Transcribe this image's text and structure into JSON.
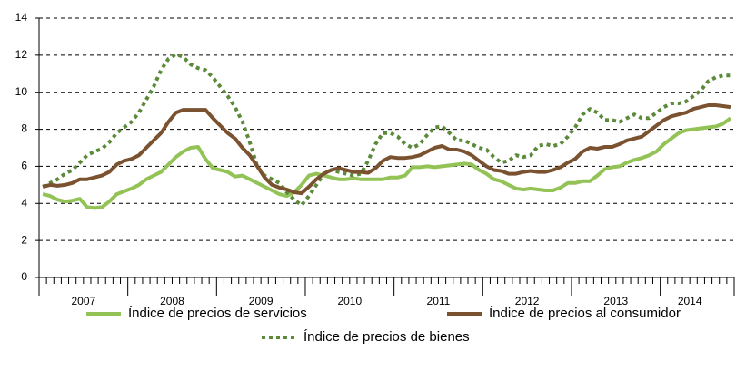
{
  "chart_data": {
    "type": "line",
    "categories": [
      null,
      null,
      null,
      null,
      null,
      null,
      "2007",
      null,
      null,
      null,
      null,
      null,
      null,
      null,
      null,
      null,
      null,
      null,
      "2008",
      null,
      null,
      null,
      null,
      null,
      null,
      null,
      null,
      null,
      null,
      null,
      "2009",
      null,
      null,
      null,
      null,
      null,
      null,
      null,
      null,
      null,
      null,
      null,
      "2010",
      null,
      null,
      null,
      null,
      null,
      null,
      null,
      null,
      null,
      null,
      null,
      "2011",
      null,
      null,
      null,
      null,
      null,
      null,
      null,
      null,
      null,
      null,
      null,
      "2012",
      null,
      null,
      null,
      null,
      null,
      null,
      null,
      null,
      null,
      null,
      null,
      "2013",
      null,
      null,
      null,
      null,
      null,
      null,
      null,
      null,
      null,
      "2014",
      null,
      null,
      null,
      null,
      null
    ],
    "ylim": [
      0,
      14
    ],
    "yticks": [
      0,
      2,
      4,
      6,
      8,
      10,
      12,
      14
    ],
    "grid": true,
    "series": [
      {
        "name": "Índice de precios de servicios",
        "color": "#93c356",
        "dash": false,
        "values": [
          4.5,
          4.4,
          4.2,
          4.1,
          4.15,
          4.25,
          3.8,
          3.75,
          3.8,
          4.1,
          4.5,
          4.65,
          4.8,
          5.0,
          5.3,
          5.5,
          5.7,
          6.1,
          6.5,
          6.8,
          7.0,
          7.05,
          6.4,
          5.9,
          5.8,
          5.7,
          5.45,
          5.5,
          5.3,
          5.1,
          4.9,
          4.7,
          4.5,
          4.4,
          4.6,
          5.0,
          5.5,
          5.6,
          5.5,
          5.4,
          5.3,
          5.3,
          5.35,
          5.3,
          5.3,
          5.3,
          5.3,
          5.4,
          5.4,
          5.5,
          5.95,
          5.95,
          6.0,
          5.95,
          6.0,
          6.05,
          6.1,
          6.15,
          6.1,
          5.8,
          5.6,
          5.3,
          5.2,
          5.0,
          4.8,
          4.75,
          4.8,
          4.75,
          4.7,
          4.7,
          4.85,
          5.1,
          5.1,
          5.2,
          5.2,
          5.5,
          5.85,
          5.95,
          6.0,
          6.2,
          6.35,
          6.45,
          6.6,
          6.8,
          7.2,
          7.5,
          7.8,
          7.95,
          8.0,
          8.05,
          8.1,
          8.15,
          8.3,
          8.6
        ]
      },
      {
        "name": "Índice de precios al consumidor",
        "color": "#7a5230",
        "dash": false,
        "values": [
          4.9,
          5.0,
          4.95,
          5.0,
          5.1,
          5.3,
          5.3,
          5.4,
          5.5,
          5.7,
          6.1,
          6.3,
          6.4,
          6.6,
          7.0,
          7.4,
          7.8,
          8.4,
          8.9,
          9.05,
          9.05,
          9.05,
          9.05,
          8.6,
          8.2,
          7.8,
          7.5,
          7.0,
          6.6,
          6.0,
          5.4,
          5.0,
          4.85,
          4.75,
          4.6,
          4.55,
          4.9,
          5.3,
          5.6,
          5.8,
          5.9,
          5.8,
          5.7,
          5.7,
          5.65,
          5.9,
          6.3,
          6.5,
          6.45,
          6.45,
          6.5,
          6.6,
          6.8,
          7.0,
          7.1,
          6.9,
          6.9,
          6.8,
          6.6,
          6.3,
          6.0,
          5.8,
          5.75,
          5.6,
          5.6,
          5.7,
          5.75,
          5.7,
          5.7,
          5.8,
          5.95,
          6.2,
          6.4,
          6.8,
          7.0,
          6.95,
          7.05,
          7.05,
          7.2,
          7.4,
          7.5,
          7.6,
          7.9,
          8.2,
          8.5,
          8.7,
          8.8,
          8.9,
          9.1,
          9.2,
          9.3,
          9.3,
          9.25,
          9.2
        ]
      },
      {
        "name": "Índice de precios de bienes",
        "color": "#5b8a3a",
        "dash": true,
        "values": [
          4.9,
          5.1,
          5.3,
          5.6,
          5.8,
          6.2,
          6.6,
          6.8,
          6.95,
          7.3,
          7.8,
          8.1,
          8.4,
          8.9,
          9.6,
          10.3,
          11.2,
          11.8,
          12.05,
          11.9,
          11.5,
          11.3,
          11.2,
          10.8,
          10.3,
          9.8,
          9.2,
          8.4,
          7.3,
          6.0,
          5.5,
          5.3,
          5.1,
          4.6,
          4.2,
          3.9,
          4.4,
          5.0,
          5.6,
          5.8,
          5.7,
          5.6,
          5.5,
          5.6,
          6.3,
          7.2,
          7.8,
          7.8,
          7.6,
          7.2,
          7.0,
          7.2,
          7.7,
          8.1,
          8.15,
          7.8,
          7.4,
          7.4,
          7.2,
          7.0,
          6.9,
          6.5,
          6.2,
          6.3,
          6.6,
          6.5,
          6.6,
          7.1,
          7.2,
          7.1,
          7.2,
          7.6,
          8.1,
          8.8,
          9.1,
          8.9,
          8.5,
          8.5,
          8.4,
          8.6,
          8.8,
          8.6,
          8.6,
          8.9,
          9.2,
          9.4,
          9.4,
          9.5,
          9.8,
          10.1,
          10.6,
          10.8,
          10.9,
          10.9
        ]
      }
    ]
  }
}
